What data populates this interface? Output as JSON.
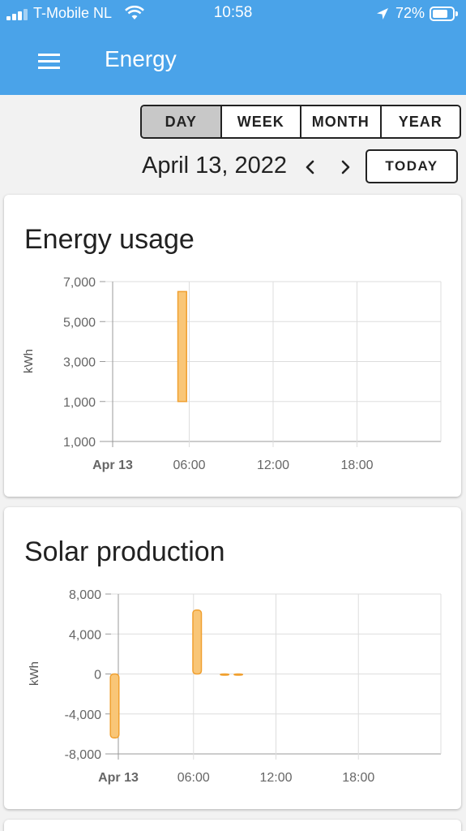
{
  "status_bar": {
    "carrier": "T-Mobile NL",
    "time": "10:58",
    "battery_percent": "72%",
    "battery_level": 0.72
  },
  "header": {
    "title": "Energy",
    "menu_icon": "hamburger-menu-icon",
    "background_color": "#4aa3e9"
  },
  "period_selector": {
    "options": [
      "DAY",
      "WEEK",
      "MONTH",
      "YEAR"
    ],
    "selected": "DAY"
  },
  "date_nav": {
    "date": "April 13, 2022",
    "prev_icon": "chevron-left-icon",
    "next_icon": "chevron-right-icon",
    "today_label": "TODAY"
  },
  "cards": {
    "usage_title": "Energy usage",
    "solar_title": "Solar production"
  },
  "chart_data": [
    {
      "type": "bar",
      "title": "Energy usage",
      "ylabel": "kWh",
      "yticks": [
        "7,000",
        "5,000",
        "3,000",
        "1,000",
        "1,000"
      ],
      "ylim": [
        -1000,
        7000
      ],
      "xticks": [
        "Apr 13",
        "06:00",
        "12:00",
        "18:00"
      ],
      "bars": [
        {
          "x_hour": 5,
          "y0": 1000,
          "y1": 6500
        }
      ],
      "bar_color": "#f9c677",
      "bar_border": "#f0a030"
    },
    {
      "type": "bar",
      "title": "Solar production",
      "ylabel": "kWh",
      "yticks": [
        "8,000",
        "4,000",
        "0",
        "-4,000",
        "-8,000"
      ],
      "ylim": [
        -8000,
        8000
      ],
      "xticks": [
        "Apr 13",
        "06:00",
        "12:00",
        "18:00"
      ],
      "bars": [
        {
          "x_hour": 0,
          "y0": 0,
          "y1": -6400
        },
        {
          "x_hour": 6,
          "y0": 0,
          "y1": 6400
        },
        {
          "x_hour": 8,
          "y0": 0,
          "y1": 0
        },
        {
          "x_hour": 9,
          "y0": 0,
          "y1": 0
        }
      ],
      "bar_color": "#f9c677",
      "bar_border": "#f0a030"
    }
  ]
}
